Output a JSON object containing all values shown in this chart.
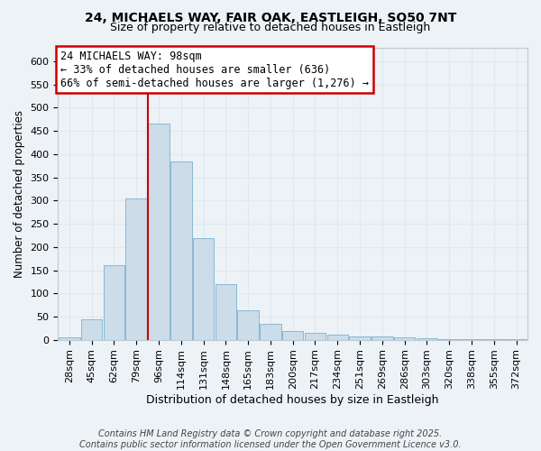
{
  "title_line1": "24, MICHAELS WAY, FAIR OAK, EASTLEIGH, SO50 7NT",
  "title_line2": "Size of property relative to detached houses in Eastleigh",
  "xlabel": "Distribution of detached houses by size in Eastleigh",
  "ylabel": "Number of detached properties",
  "categories": [
    "28sqm",
    "45sqm",
    "62sqm",
    "79sqm",
    "96sqm",
    "114sqm",
    "131sqm",
    "148sqm",
    "165sqm",
    "183sqm",
    "200sqm",
    "217sqm",
    "234sqm",
    "251sqm",
    "269sqm",
    "286sqm",
    "303sqm",
    "320sqm",
    "338sqm",
    "355sqm",
    "372sqm"
  ],
  "values": [
    5,
    45,
    160,
    305,
    465,
    385,
    220,
    120,
    63,
    35,
    18,
    15,
    12,
    8,
    7,
    5,
    3,
    2,
    2,
    2,
    2
  ],
  "bar_color": "#ccdce8",
  "bar_edge_color": "#88b8d4",
  "red_line_index": 4,
  "annotation_line1": "24 MICHAELS WAY: 98sqm",
  "annotation_line2": "← 33% of detached houses are smaller (636)",
  "annotation_line3": "66% of semi-detached houses are larger (1,276) →",
  "annotation_box_color": "#ffffff",
  "annotation_box_edge_color": "#cc0000",
  "grid_color": "#dce8f0",
  "background_color": "#edf2f7",
  "plot_bg_color": "#edf2f7",
  "footer_text": "Contains HM Land Registry data © Crown copyright and database right 2025.\nContains public sector information licensed under the Open Government Licence v3.0.",
  "ylim": [
    0,
    630
  ],
  "yticks": [
    0,
    50,
    100,
    150,
    200,
    250,
    300,
    350,
    400,
    450,
    500,
    550,
    600
  ],
  "title_fontsize": 10,
  "subtitle_fontsize": 9,
  "xlabel_fontsize": 9,
  "ylabel_fontsize": 8.5,
  "tick_fontsize": 8,
  "annot_fontsize": 8.5,
  "footer_fontsize": 7
}
